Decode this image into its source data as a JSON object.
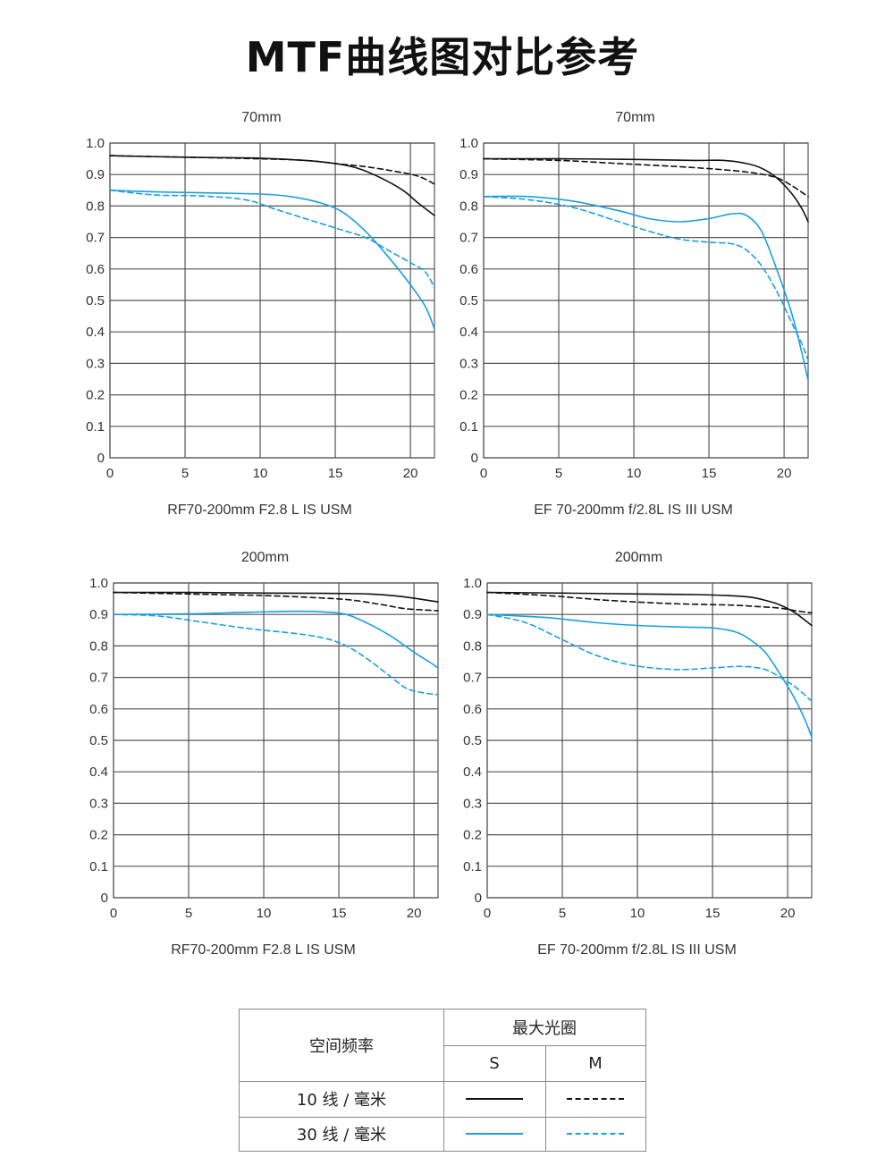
{
  "title": "MTF曲线图对比参考",
  "colors": {
    "s10": "#111111",
    "s30": "#1a9fe0",
    "grid": "#555555"
  },
  "chart_data": [
    {
      "type": "line",
      "title": "70mm",
      "subtitle": "RF70-200mm F2.8 L IS USM",
      "xlim": [
        0,
        21.6
      ],
      "ylim": [
        0,
        1.0
      ],
      "xticks": [
        "0",
        "5",
        "10",
        "15",
        "20"
      ],
      "yticks": [
        "0",
        "0.1",
        "0.2",
        "0.3",
        "0.4",
        "0.5",
        "0.6",
        "0.7",
        "0.8",
        "0.9",
        "1.0"
      ],
      "series": [
        {
          "key": "s10",
          "dashed": false,
          "points": [
            [
              0,
              0.96
            ],
            [
              5,
              0.955
            ],
            [
              10,
              0.952
            ],
            [
              13,
              0.945
            ],
            [
              15,
              0.935
            ],
            [
              16.5,
              0.92
            ],
            [
              18,
              0.89
            ],
            [
              19.5,
              0.85
            ],
            [
              20.5,
              0.81
            ],
            [
              21.6,
              0.77
            ]
          ]
        },
        {
          "key": "s10",
          "dashed": true,
          "points": [
            [
              0,
              0.96
            ],
            [
              5,
              0.955
            ],
            [
              10,
              0.95
            ],
            [
              13,
              0.945
            ],
            [
              15,
              0.935
            ],
            [
              17,
              0.925
            ],
            [
              19,
              0.91
            ],
            [
              20.5,
              0.895
            ],
            [
              21.6,
              0.87
            ]
          ]
        },
        {
          "key": "s30",
          "dashed": false,
          "points": [
            [
              0,
              0.85
            ],
            [
              3,
              0.845
            ],
            [
              6,
              0.842
            ],
            [
              10,
              0.838
            ],
            [
              12,
              0.83
            ],
            [
              14,
              0.81
            ],
            [
              15.5,
              0.78
            ],
            [
              17,
              0.72
            ],
            [
              18.5,
              0.64
            ],
            [
              20,
              0.55
            ],
            [
              21,
              0.48
            ],
            [
              21.6,
              0.41
            ]
          ]
        },
        {
          "key": "s30",
          "dashed": true,
          "points": [
            [
              0,
              0.85
            ],
            [
              3,
              0.835
            ],
            [
              6,
              0.832
            ],
            [
              9,
              0.82
            ],
            [
              11,
              0.79
            ],
            [
              13,
              0.76
            ],
            [
              15,
              0.73
            ],
            [
              17,
              0.7
            ],
            [
              18.5,
              0.66
            ],
            [
              20,
              0.62
            ],
            [
              21,
              0.59
            ],
            [
              21.6,
              0.54
            ]
          ]
        }
      ]
    },
    {
      "type": "line",
      "title": "70mm",
      "subtitle": "EF 70-200mm f/2.8L IS III USM",
      "xlim": [
        0,
        21.6
      ],
      "ylim": [
        0,
        1.0
      ],
      "xticks": [
        "0",
        "5",
        "10",
        "15",
        "20"
      ],
      "yticks": [
        "0",
        "0.1",
        "0.2",
        "0.3",
        "0.4",
        "0.5",
        "0.6",
        "0.7",
        "0.8",
        "0.9",
        "1.0"
      ],
      "series": [
        {
          "key": "s10",
          "dashed": false,
          "points": [
            [
              0,
              0.95
            ],
            [
              5,
              0.95
            ],
            [
              10,
              0.948
            ],
            [
              14,
              0.945
            ],
            [
              16,
              0.945
            ],
            [
              17.5,
              0.935
            ],
            [
              18.5,
              0.92
            ],
            [
              19.5,
              0.89
            ],
            [
              20.5,
              0.84
            ],
            [
              21.2,
              0.79
            ],
            [
              21.6,
              0.75
            ]
          ]
        },
        {
          "key": "s10",
          "dashed": true,
          "points": [
            [
              0,
              0.95
            ],
            [
              5,
              0.945
            ],
            [
              9,
              0.935
            ],
            [
              13,
              0.925
            ],
            [
              16,
              0.915
            ],
            [
              18,
              0.905
            ],
            [
              19.5,
              0.89
            ],
            [
              20.5,
              0.865
            ],
            [
              21.6,
              0.83
            ]
          ]
        },
        {
          "key": "s30",
          "dashed": false,
          "points": [
            [
              0,
              0.83
            ],
            [
              3,
              0.83
            ],
            [
              6,
              0.815
            ],
            [
              9,
              0.785
            ],
            [
              11,
              0.76
            ],
            [
              13,
              0.75
            ],
            [
              15,
              0.76
            ],
            [
              16.5,
              0.775
            ],
            [
              17.5,
              0.77
            ],
            [
              18.5,
              0.72
            ],
            [
              19.5,
              0.6
            ],
            [
              20.5,
              0.46
            ],
            [
              21.2,
              0.33
            ],
            [
              21.6,
              0.245
            ]
          ]
        },
        {
          "key": "s30",
          "dashed": true,
          "points": [
            [
              0,
              0.83
            ],
            [
              3,
              0.82
            ],
            [
              6,
              0.795
            ],
            [
              9,
              0.75
            ],
            [
              11,
              0.72
            ],
            [
              13,
              0.695
            ],
            [
              15,
              0.685
            ],
            [
              16.5,
              0.68
            ],
            [
              17.5,
              0.66
            ],
            [
              18.5,
              0.61
            ],
            [
              19.5,
              0.53
            ],
            [
              20.5,
              0.43
            ],
            [
              21.2,
              0.36
            ],
            [
              21.6,
              0.31
            ]
          ]
        }
      ]
    },
    {
      "type": "line",
      "title": "200mm",
      "subtitle": "RF70-200mm F2.8 L IS USM",
      "xlim": [
        0,
        21.6
      ],
      "ylim": [
        0,
        1.0
      ],
      "xticks": [
        "0",
        "5",
        "10",
        "15",
        "20"
      ],
      "yticks": [
        "0",
        "0.1",
        "0.2",
        "0.3",
        "0.4",
        "0.5",
        "0.6",
        "0.7",
        "0.8",
        "0.9",
        "1.0"
      ],
      "series": [
        {
          "key": "s10",
          "dashed": false,
          "points": [
            [
              0,
              0.97
            ],
            [
              5,
              0.97
            ],
            [
              10,
              0.968
            ],
            [
              14,
              0.967
            ],
            [
              17,
              0.965
            ],
            [
              19,
              0.958
            ],
            [
              20.5,
              0.948
            ],
            [
              21.6,
              0.94
            ]
          ]
        },
        {
          "key": "s10",
          "dashed": true,
          "points": [
            [
              0,
              0.97
            ],
            [
              5,
              0.965
            ],
            [
              10,
              0.96
            ],
            [
              14,
              0.952
            ],
            [
              16,
              0.945
            ],
            [
              18,
              0.93
            ],
            [
              19.5,
              0.918
            ],
            [
              21.6,
              0.912
            ]
          ]
        },
        {
          "key": "s30",
          "dashed": false,
          "points": [
            [
              0,
              0.9
            ],
            [
              5,
              0.902
            ],
            [
              9,
              0.907
            ],
            [
              12,
              0.91
            ],
            [
              14,
              0.908
            ],
            [
              15.5,
              0.9
            ],
            [
              17,
              0.87
            ],
            [
              18.5,
              0.83
            ],
            [
              20,
              0.78
            ],
            [
              21,
              0.75
            ],
            [
              21.6,
              0.73
            ]
          ]
        },
        {
          "key": "s30",
          "dashed": true,
          "points": [
            [
              0,
              0.9
            ],
            [
              3,
              0.895
            ],
            [
              6,
              0.875
            ],
            [
              9,
              0.855
            ],
            [
              12,
              0.84
            ],
            [
              14,
              0.825
            ],
            [
              15.5,
              0.8
            ],
            [
              17,
              0.755
            ],
            [
              18.5,
              0.7
            ],
            [
              19.5,
              0.665
            ],
            [
              20.5,
              0.652
            ],
            [
              21.6,
              0.645
            ]
          ]
        }
      ]
    },
    {
      "type": "line",
      "title": "200mm",
      "subtitle": "EF 70-200mm f/2.8L IS III USM",
      "xlim": [
        0,
        21.6
      ],
      "ylim": [
        0,
        1.0
      ],
      "xticks": [
        "0",
        "5",
        "10",
        "15",
        "20"
      ],
      "yticks": [
        "0",
        "0.1",
        "0.2",
        "0.3",
        "0.4",
        "0.5",
        "0.6",
        "0.7",
        "0.8",
        "0.9",
        "1.0"
      ],
      "series": [
        {
          "key": "s10",
          "dashed": false,
          "points": [
            [
              0,
              0.97
            ],
            [
              5,
              0.968
            ],
            [
              10,
              0.965
            ],
            [
              14,
              0.963
            ],
            [
              16,
              0.96
            ],
            [
              17.5,
              0.955
            ],
            [
              18.5,
              0.945
            ],
            [
              19.5,
              0.93
            ],
            [
              20.5,
              0.905
            ],
            [
              21.6,
              0.865
            ]
          ]
        },
        {
          "key": "s10",
          "dashed": true,
          "points": [
            [
              0,
              0.97
            ],
            [
              4,
              0.96
            ],
            [
              8,
              0.945
            ],
            [
              12,
              0.935
            ],
            [
              16,
              0.93
            ],
            [
              18,
              0.925
            ],
            [
              19.5,
              0.92
            ],
            [
              20.5,
              0.912
            ],
            [
              21.6,
              0.905
            ]
          ]
        },
        {
          "key": "s30",
          "dashed": false,
          "points": [
            [
              0,
              0.9
            ],
            [
              4,
              0.89
            ],
            [
              7,
              0.875
            ],
            [
              10,
              0.865
            ],
            [
              13,
              0.86
            ],
            [
              15,
              0.857
            ],
            [
              16.5,
              0.845
            ],
            [
              17.5,
              0.82
            ],
            [
              18.5,
              0.78
            ],
            [
              19.5,
              0.71
            ],
            [
              20.5,
              0.63
            ],
            [
              21.2,
              0.56
            ],
            [
              21.6,
              0.51
            ]
          ]
        },
        {
          "key": "s30",
          "dashed": true,
          "points": [
            [
              0,
              0.9
            ],
            [
              2.5,
              0.875
            ],
            [
              5,
              0.82
            ],
            [
              7,
              0.775
            ],
            [
              9,
              0.745
            ],
            [
              11,
              0.73
            ],
            [
              13,
              0.725
            ],
            [
              15,
              0.73
            ],
            [
              17,
              0.735
            ],
            [
              18.5,
              0.725
            ],
            [
              19.5,
              0.7
            ],
            [
              20.5,
              0.67
            ],
            [
              21.6,
              0.625
            ]
          ]
        }
      ]
    }
  ],
  "legend": {
    "header_left": "空间频率",
    "header_top": "最大光圈",
    "col_s": "S",
    "col_m": "M",
    "row1": "10 线 / 毫米",
    "row2": "30 线 / 毫米"
  }
}
